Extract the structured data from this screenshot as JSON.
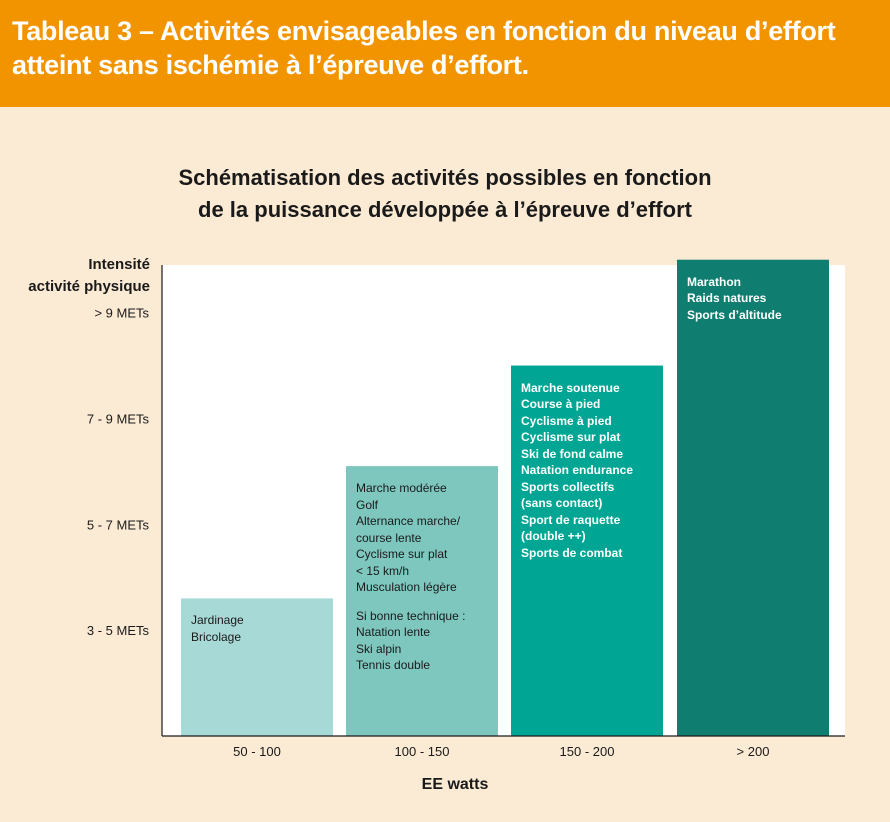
{
  "banner": {
    "title_line1": "Tableau 3 – Activités envisageables en fonction du niveau d’effort",
    "title_line2": "atteint sans ischémie à l’épreuve d’effort."
  },
  "colors": {
    "banner": "#f29400",
    "background": "#fcebd4",
    "plot_area": "#ffffff",
    "bar_1": "#a7d9d6",
    "bar_2": "#7ec7bf",
    "bar_3": "#00a693",
    "bar_4": "#0f7d6f"
  },
  "chart_data": {
    "type": "bar",
    "title_line1": "Schématisation des activités possibles en fonction",
    "title_line2": "de la puissance développée à l’épreuve d’effort",
    "ylabel_line1": "Intensité",
    "ylabel_line2": "activité physique",
    "xlabel": "EE watts",
    "categories": [
      "50 - 100",
      "100 - 150",
      "150 - 200",
      "> 200"
    ],
    "y_ticks": [
      "3 - 5 METs",
      "5 - 7 METs",
      "7 - 9 METs",
      "> 9 METs"
    ],
    "ylim": [
      0,
      4.45
    ],
    "values": [
      1.3,
      2.55,
      3.5,
      4.5
    ],
    "bars": [
      {
        "category": "50 - 100",
        "lines": [
          "Jardinage",
          "Bricolage"
        ]
      },
      {
        "category": "100 - 150",
        "lines": [
          "Marche modérée",
          "Golf",
          "Alternance marche/",
          "course lente",
          "Cyclisme sur plat",
          "< 15 km/h",
          "Musculation légère",
          "",
          "Si bonne technique :",
          "Natation lente",
          "Ski alpin",
          "Tennis double"
        ]
      },
      {
        "category": "150 - 200",
        "lines": [
          "Marche soutenue",
          "Course à pied",
          "Cyclisme à pied",
          "Cyclisme sur plat",
          "Ski de fond calme",
          "Natation endurance",
          "Sports collectifs",
          "(sans contact)",
          "Sport de raquette",
          "(double ++)",
          "Sports de combat"
        ]
      },
      {
        "category": "> 200",
        "lines": [
          "Marathon",
          "Raids natures",
          "Sports d’altitude"
        ]
      }
    ],
    "grid": false,
    "legend": "none"
  }
}
